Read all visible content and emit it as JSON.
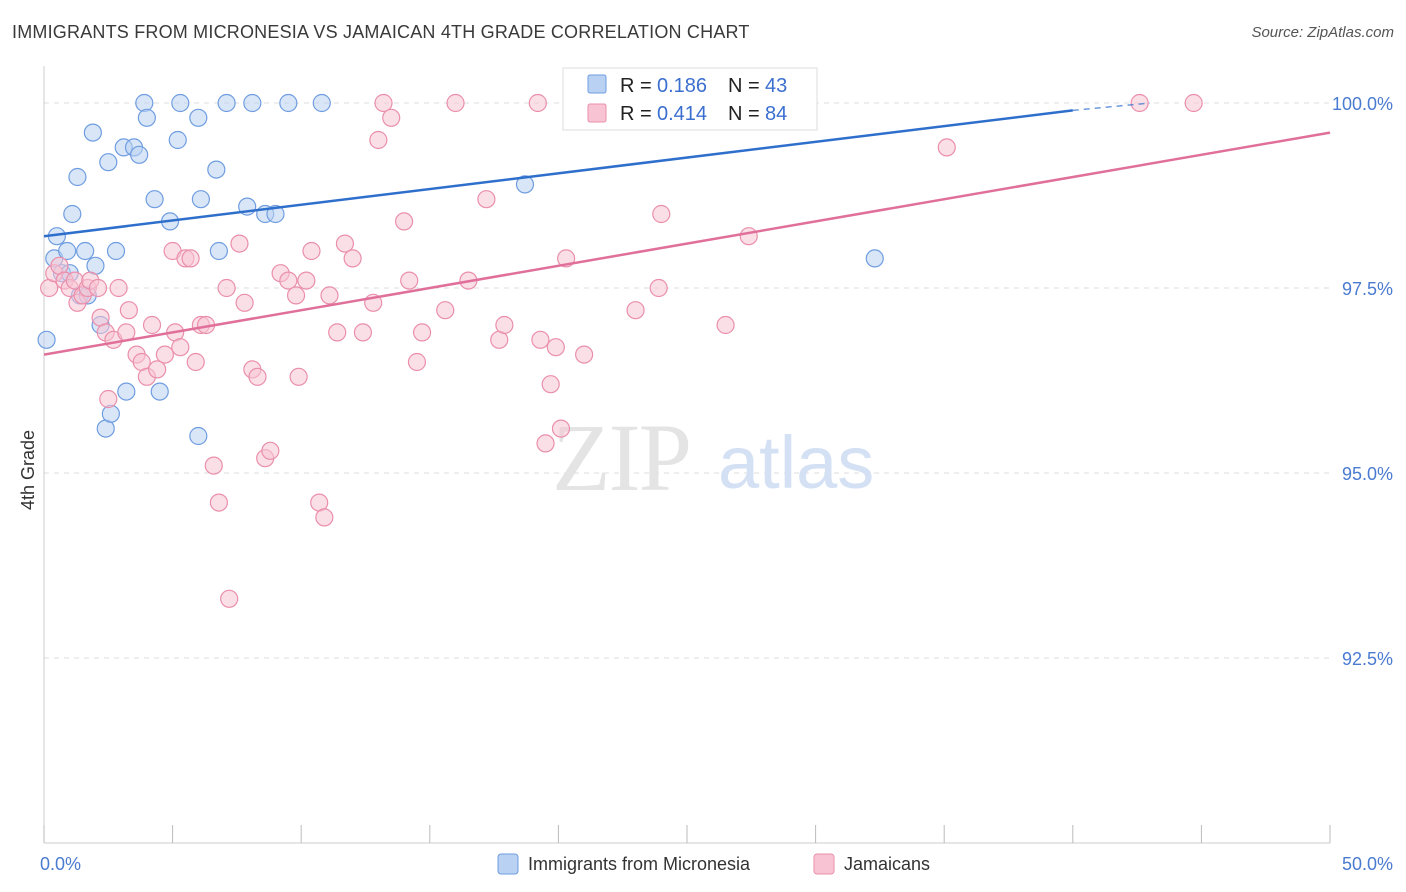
{
  "header": {
    "title": "IMMIGRANTS FROM MICRONESIA VS JAMAICAN 4TH GRADE CORRELATION CHART",
    "source": "Source: ZipAtlas.com"
  },
  "watermark": {
    "zip": "ZIP",
    "atlas": "atlas"
  },
  "legend_top": [
    {
      "r_label": "R =",
      "r_value": "0.186",
      "n_label": "N =",
      "n_value": "43"
    },
    {
      "r_label": "R =",
      "r_value": "0.414",
      "n_label": "N =",
      "n_value": "84"
    }
  ],
  "legend_bottom": [
    "Immigrants from Micronesia",
    "Jamaicans"
  ],
  "colors": {
    "blue_fill": "#b9d1f3",
    "blue_stroke": "#6f9de0",
    "blue_line": "#2f6fcc",
    "pink_fill": "#f8c4d4",
    "pink_stroke": "#ea8fab",
    "pink_line": "#e0709a",
    "grid": "#dddddd",
    "tick_text": "#4a7bd0"
  },
  "chart_data": {
    "type": "scatter",
    "title": "IMMIGRANTS FROM MICRONESIA VS JAMAICAN 4TH GRADE CORRELATION CHART",
    "xlabel": "",
    "ylabel": "4th Grade",
    "xlim": [
      0,
      50
    ],
    "ylim": [
      90.0,
      100.5
    ],
    "x_tick_labels": [
      {
        "value": 0,
        "label": "0.0%"
      },
      {
        "value": 50,
        "label": "50.0%"
      }
    ],
    "y_tick_labels": [
      {
        "value": 100.0,
        "label": "100.0%"
      },
      {
        "value": 97.5,
        "label": "97.5%"
      },
      {
        "value": 95.0,
        "label": "95.0%"
      },
      {
        "value": 92.5,
        "label": "92.5%"
      }
    ],
    "grid": "horizontal dashed",
    "legend_placement": "top-center and bottom",
    "series": [
      {
        "name": "Immigrants from Micronesia",
        "r": 0.186,
        "n": 43,
        "trend": {
          "x": [
            0,
            40,
            43
          ],
          "y": [
            98.2,
            99.9,
            100.0
          ]
        },
        "points": [
          [
            0.1,
            96.8
          ],
          [
            0.4,
            97.9
          ],
          [
            0.5,
            98.2
          ],
          [
            0.7,
            97.7
          ],
          [
            0.9,
            98.0
          ],
          [
            1.0,
            97.7
          ],
          [
            1.1,
            98.5
          ],
          [
            1.3,
            99.0
          ],
          [
            1.4,
            97.4
          ],
          [
            1.6,
            98.0
          ],
          [
            1.7,
            97.4
          ],
          [
            1.9,
            99.6
          ],
          [
            2.0,
            97.8
          ],
          [
            2.2,
            97.0
          ],
          [
            2.4,
            95.6
          ],
          [
            2.5,
            99.2
          ],
          [
            2.6,
            95.8
          ],
          [
            2.8,
            98.0
          ],
          [
            3.1,
            99.4
          ],
          [
            3.2,
            96.1
          ],
          [
            3.5,
            99.4
          ],
          [
            3.7,
            99.3
          ],
          [
            3.9,
            100.0
          ],
          [
            4.0,
            99.8
          ],
          [
            4.3,
            98.7
          ],
          [
            4.5,
            96.1
          ],
          [
            4.9,
            98.4
          ],
          [
            5.2,
            99.5
          ],
          [
            5.3,
            100.0
          ],
          [
            6.0,
            99.8
          ],
          [
            6.1,
            98.7
          ],
          [
            6.7,
            99.1
          ],
          [
            6.8,
            98.0
          ],
          [
            7.1,
            100.0
          ],
          [
            7.9,
            98.6
          ],
          [
            8.1,
            100.0
          ],
          [
            8.6,
            98.5
          ],
          [
            9.0,
            98.5
          ],
          [
            9.5,
            100.0
          ],
          [
            10.8,
            100.0
          ],
          [
            18.7,
            98.9
          ],
          [
            32.3,
            97.9
          ],
          [
            6.0,
            95.5
          ]
        ]
      },
      {
        "name": "Jamaicans",
        "r": 0.414,
        "n": 84,
        "trend": {
          "x": [
            0,
            50
          ],
          "y": [
            96.6,
            99.6
          ]
        },
        "points": [
          [
            0.2,
            97.5
          ],
          [
            0.4,
            97.7
          ],
          [
            0.6,
            97.8
          ],
          [
            0.8,
            97.6
          ],
          [
            1.0,
            97.5
          ],
          [
            1.2,
            97.6
          ],
          [
            1.3,
            97.3
          ],
          [
            1.5,
            97.4
          ],
          [
            1.7,
            97.5
          ],
          [
            1.8,
            97.6
          ],
          [
            2.1,
            97.5
          ],
          [
            2.2,
            97.1
          ],
          [
            2.4,
            96.9
          ],
          [
            2.5,
            96.0
          ],
          [
            2.7,
            96.8
          ],
          [
            2.9,
            97.5
          ],
          [
            3.2,
            96.9
          ],
          [
            3.3,
            97.2
          ],
          [
            3.6,
            96.6
          ],
          [
            3.8,
            96.5
          ],
          [
            4.0,
            96.3
          ],
          [
            4.2,
            97.0
          ],
          [
            4.4,
            96.4
          ],
          [
            4.7,
            96.6
          ],
          [
            5.0,
            98.0
          ],
          [
            5.1,
            96.9
          ],
          [
            5.3,
            96.7
          ],
          [
            5.5,
            97.9
          ],
          [
            5.7,
            97.9
          ],
          [
            5.9,
            96.5
          ],
          [
            6.1,
            97.0
          ],
          [
            6.3,
            97.0
          ],
          [
            6.6,
            95.1
          ],
          [
            6.8,
            94.6
          ],
          [
            7.1,
            97.5
          ],
          [
            7.2,
            93.3
          ],
          [
            7.6,
            98.1
          ],
          [
            7.8,
            97.3
          ],
          [
            8.1,
            96.4
          ],
          [
            8.3,
            96.3
          ],
          [
            8.6,
            95.2
          ],
          [
            8.8,
            95.3
          ],
          [
            9.2,
            97.7
          ],
          [
            9.5,
            97.6
          ],
          [
            9.8,
            97.4
          ],
          [
            9.9,
            96.3
          ],
          [
            10.2,
            97.6
          ],
          [
            10.4,
            98.0
          ],
          [
            10.7,
            94.6
          ],
          [
            10.9,
            94.4
          ],
          [
            11.1,
            97.4
          ],
          [
            11.4,
            96.9
          ],
          [
            11.7,
            98.1
          ],
          [
            12.0,
            97.9
          ],
          [
            12.4,
            96.9
          ],
          [
            12.8,
            97.3
          ],
          [
            13.0,
            99.5
          ],
          [
            13.2,
            100.0
          ],
          [
            13.5,
            99.8
          ],
          [
            14.0,
            98.4
          ],
          [
            14.2,
            97.6
          ],
          [
            14.5,
            96.5
          ],
          [
            14.7,
            96.9
          ],
          [
            15.6,
            97.2
          ],
          [
            16.0,
            100.0
          ],
          [
            16.5,
            97.6
          ],
          [
            17.2,
            98.7
          ],
          [
            17.7,
            96.8
          ],
          [
            17.9,
            97.0
          ],
          [
            19.2,
            100.0
          ],
          [
            19.3,
            96.8
          ],
          [
            19.5,
            95.4
          ],
          [
            19.7,
            96.2
          ],
          [
            19.9,
            96.7
          ],
          [
            20.1,
            95.6
          ],
          [
            20.3,
            97.9
          ],
          [
            21.0,
            96.6
          ],
          [
            23.0,
            97.2
          ],
          [
            23.9,
            97.5
          ],
          [
            24.0,
            98.5
          ],
          [
            26.5,
            97.0
          ],
          [
            27.4,
            98.2
          ],
          [
            35.1,
            99.4
          ],
          [
            42.6,
            100.0
          ],
          [
            44.7,
            100.0
          ],
          [
            26.9,
            100.0
          ]
        ]
      }
    ]
  }
}
